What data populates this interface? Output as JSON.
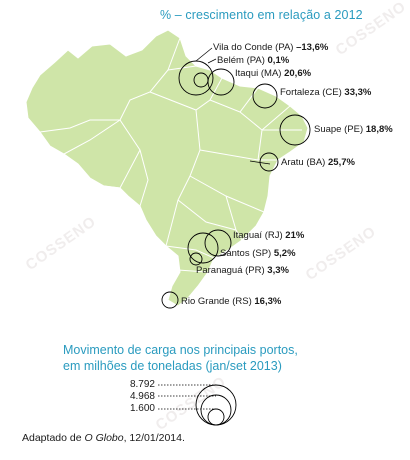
{
  "title": "% – crescimento em relação a 2012",
  "ports": [
    {
      "name": "Vila do Conde (PA)",
      "value": "–13,6%"
    },
    {
      "name": "Belém (PA)",
      "value": "0,1%"
    },
    {
      "name": "Itaqui (MA)",
      "value": "20,6%"
    },
    {
      "name": "Fortaleza (CE)",
      "value": "33,3%"
    },
    {
      "name": "Suape (PE)",
      "value": "18,8%"
    },
    {
      "name": "Aratu (BA)",
      "value": "25,7%"
    },
    {
      "name": "Itaguaí (RJ)",
      "value": "21%"
    },
    {
      "name": "Santos (SP)",
      "value": "5,2%"
    },
    {
      "name": "Paranaguá (PR)",
      "value": "3,3%"
    },
    {
      "name": "Rio Grande (RS)",
      "value": "16,3%"
    }
  ],
  "legend": {
    "title_line1": "Movimento de carga nos principais portos,",
    "title_line2": "em milhões de toneladas (jan/set 2013)",
    "values": [
      "8.792",
      "4.968",
      "1.600"
    ]
  },
  "credit": {
    "prefix": "Adaptado de ",
    "source": "O Globo",
    "suffix": ", 12/01/2014."
  },
  "watermark_text": "COSSENO",
  "colors": {
    "title": "#2a9bbf",
    "map_fill": "#cfe5a8",
    "map_border": "#ffffff",
    "circle": "#000000"
  }
}
